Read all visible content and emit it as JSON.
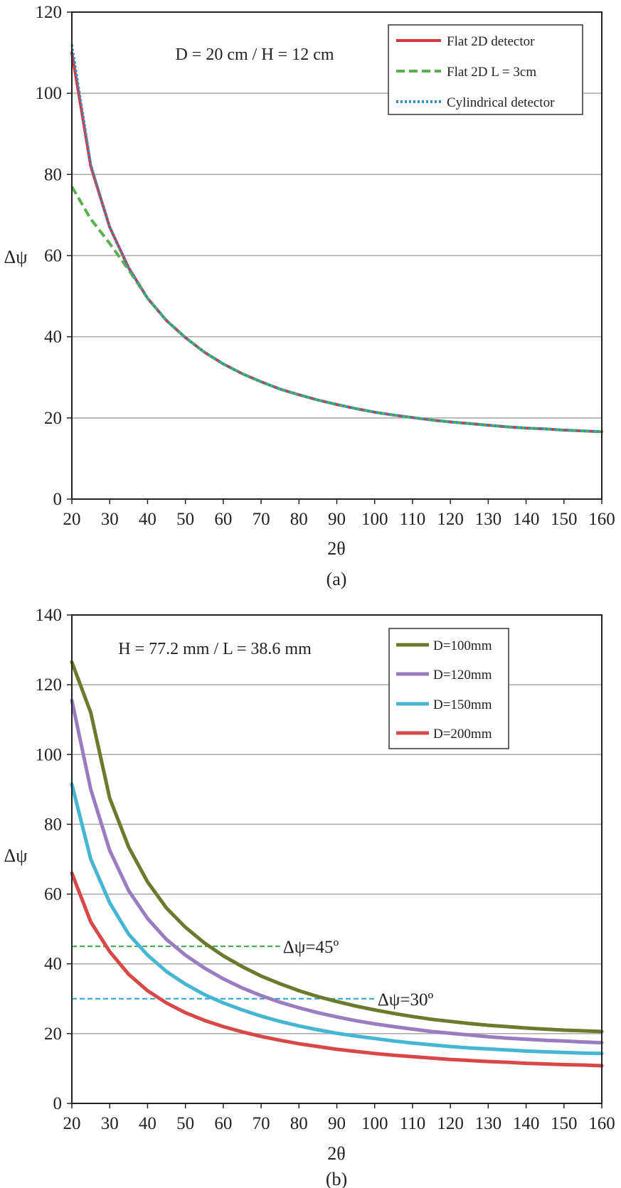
{
  "chart_data": [
    {
      "type": "line",
      "caption": "(a)",
      "subtitle": "D = 20 cm / H = 12 cm",
      "xlabel": "2θ",
      "ylabel": "Δψ",
      "xlim": [
        20,
        160
      ],
      "ylim": [
        0,
        120
      ],
      "xticks": [
        20,
        30,
        40,
        50,
        60,
        70,
        80,
        90,
        100,
        110,
        120,
        130,
        140,
        150,
        160
      ],
      "yticks": [
        0,
        20,
        40,
        60,
        80,
        100,
        120
      ],
      "grid": "horizontal",
      "legend": "top-right",
      "x": [
        20,
        25,
        30,
        35,
        40,
        45,
        50,
        55,
        60,
        65,
        70,
        75,
        80,
        85,
        90,
        95,
        100,
        105,
        110,
        115,
        120,
        125,
        130,
        135,
        140,
        145,
        150,
        155,
        160
      ],
      "series": [
        {
          "name": "Flat 2D detector",
          "color": "#d9363e",
          "style": "solid",
          "values": [
            110,
            82,
            67,
            57,
            49.5,
            44,
            39.8,
            36.2,
            33.3,
            30.9,
            28.9,
            27.1,
            25.7,
            24.4,
            23.3,
            22.3,
            21.4,
            20.7,
            20.1,
            19.5,
            19.0,
            18.6,
            18.2,
            17.8,
            17.5,
            17.3,
            17.0,
            16.8,
            16.6
          ]
        },
        {
          "name": "Flat 2D L = 3cm",
          "color": "#59b04e",
          "style": "dashed",
          "values": [
            77,
            69,
            63,
            56.5,
            49.5,
            44,
            39.8,
            36.2,
            33.3,
            30.9,
            28.9,
            27.1,
            25.7,
            24.4,
            23.3,
            22.3,
            21.4,
            20.7,
            20.1,
            19.5,
            19.0,
            18.6,
            18.2,
            17.8,
            17.5,
            17.3,
            17.0,
            16.8,
            16.6
          ]
        },
        {
          "name": "Cylindrical detector",
          "color": "#2e8fc4",
          "style": "dotted",
          "values": [
            112,
            82.5,
            67,
            57,
            49.5,
            44,
            39.8,
            36.2,
            33.3,
            30.9,
            28.9,
            27.1,
            25.7,
            24.4,
            23.3,
            22.3,
            21.4,
            20.7,
            20.1,
            19.5,
            19.0,
            18.6,
            18.2,
            17.8,
            17.5,
            17.3,
            17.0,
            16.8,
            16.6
          ]
        }
      ]
    },
    {
      "type": "line",
      "caption": "(b)",
      "subtitle": "H = 77.2 mm / L = 38.6 mm",
      "xlabel": "2θ",
      "ylabel": "Δψ",
      "xlim": [
        20,
        160
      ],
      "ylim": [
        0,
        140
      ],
      "xticks": [
        20,
        30,
        40,
        50,
        60,
        70,
        80,
        90,
        100,
        110,
        120,
        130,
        140,
        150,
        160
      ],
      "yticks": [
        0,
        20,
        40,
        60,
        80,
        100,
        120,
        140
      ],
      "grid": "horizontal",
      "legend": "top-right",
      "x": [
        20,
        25,
        30,
        35,
        40,
        45,
        50,
        55,
        60,
        65,
        70,
        75,
        80,
        85,
        90,
        95,
        100,
        105,
        110,
        115,
        120,
        125,
        130,
        135,
        140,
        145,
        150,
        155,
        160
      ],
      "series": [
        {
          "name": "D=100mm",
          "color": "#6b7a2c",
          "values": [
            126.5,
            112,
            87.5,
            73.5,
            63.5,
            56,
            50.5,
            46,
            42.3,
            39.2,
            36.5,
            34.3,
            32.3,
            30.6,
            29.2,
            27.9,
            26.8,
            25.8,
            24.9,
            24.1,
            23.5,
            22.9,
            22.4,
            22.0,
            21.6,
            21.3,
            21.0,
            20.8,
            20.6
          ]
        },
        {
          "name": "D=120mm",
          "color": "#9a7cc0",
          "values": [
            115.5,
            90,
            72.5,
            61,
            53,
            47,
            42.5,
            38.8,
            35.7,
            33.1,
            30.9,
            29.0,
            27.4,
            26.0,
            24.8,
            23.7,
            22.8,
            22.0,
            21.3,
            20.6,
            20.1,
            19.6,
            19.1,
            18.7,
            18.4,
            18.1,
            17.9,
            17.6,
            17.4
          ]
        },
        {
          "name": "D=150mm",
          "color": "#45b7d2",
          "values": [
            91.5,
            70,
            57.5,
            48.5,
            42.5,
            37.8,
            34.2,
            31.2,
            28.8,
            26.8,
            25.0,
            23.5,
            22.2,
            21.1,
            20.1,
            19.3,
            18.6,
            17.9,
            17.3,
            16.8,
            16.3,
            15.9,
            15.6,
            15.3,
            15.0,
            14.8,
            14.6,
            14.4,
            14.3
          ]
        },
        {
          "name": "D=200mm",
          "color": "#d94848",
          "values": [
            66,
            52,
            43.5,
            37,
            32.3,
            28.8,
            26.0,
            23.8,
            22.0,
            20.5,
            19.2,
            18.1,
            17.1,
            16.3,
            15.5,
            14.9,
            14.3,
            13.8,
            13.4,
            13.0,
            12.6,
            12.3,
            12.0,
            11.8,
            11.5,
            11.3,
            11.1,
            11.0,
            10.8
          ]
        }
      ],
      "reference_lines": [
        {
          "label": "Δψ=45º",
          "y": 45,
          "x_from": 20,
          "x_to": 75,
          "color": "#3aa84a"
        },
        {
          "label": "Δψ=30º",
          "y": 30,
          "x_from": 20,
          "x_to": 100,
          "color": "#2a9fd6"
        }
      ]
    }
  ]
}
